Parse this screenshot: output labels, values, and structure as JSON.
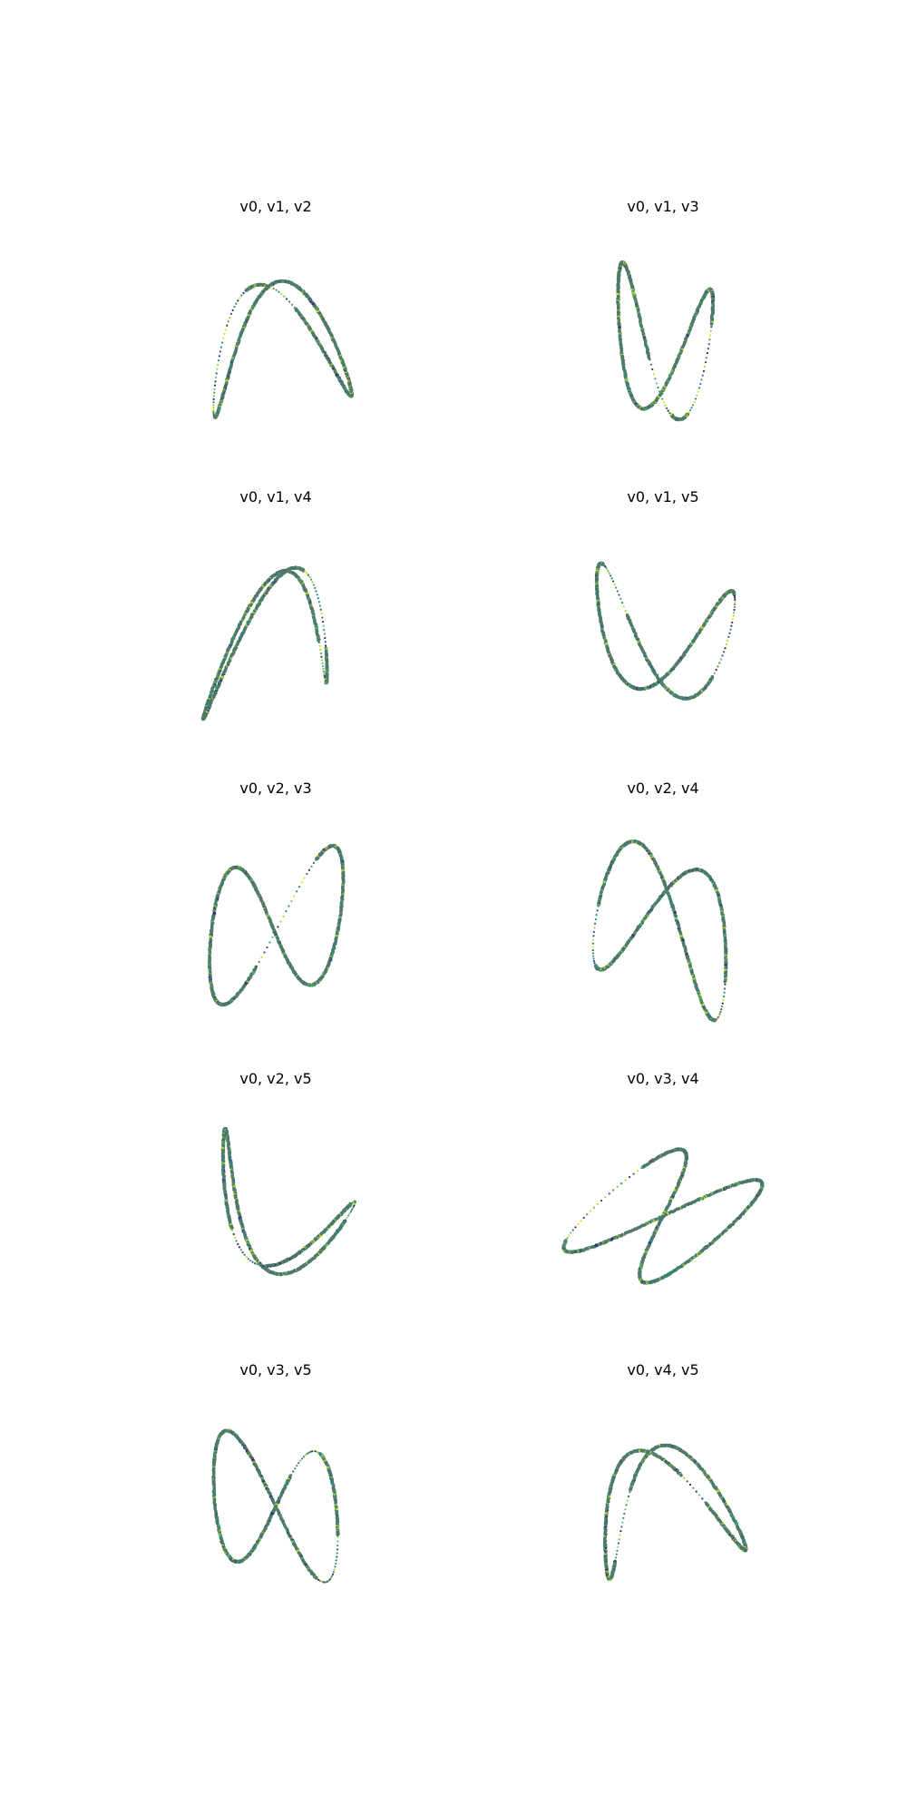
{
  "chart_data": [
    {
      "type": "scatter",
      "title": "v0, v1, v2",
      "curve": {
        "a": [
          0.95,
          0.1
        ],
        "b": [
          -0.15,
          0.85
        ],
        "shift": [
          0.35,
          -0.55
        ]
      },
      "gaps": [
        [
          4.2,
          5.6
        ],
        [
          5.9,
          6.6
        ]
      ]
    },
    {
      "type": "scatter",
      "title": "v0, v1, v3",
      "curve": {
        "a": [
          -0.65,
          0.05
        ],
        "b": [
          -0.2,
          -0.95
        ],
        "shift": [
          0.55,
          0.3
        ]
      },
      "gaps": [
        [
          4.3,
          5.1
        ],
        [
          5.5,
          6.0
        ]
      ]
    },
    {
      "type": "scatter",
      "title": "v0, v1, v4",
      "curve": {
        "a": [
          0.85,
          0.15
        ],
        "b": [
          -0.25,
          -0.9
        ],
        "shift": [
          -0.6,
          0.2
        ]
      },
      "gaps": [
        [
          0.9,
          1.7
        ],
        [
          2.3,
          2.9
        ]
      ]
    },
    {
      "type": "scatter",
      "title": "v0, v1, v5",
      "curve": {
        "a": [
          0.95,
          0.05
        ],
        "b": [
          0.2,
          -0.8
        ],
        "shift": [
          0.1,
          -0.7
        ]
      },
      "gaps": [
        [
          1.3,
          2.2
        ],
        [
          3.6,
          4.2
        ]
      ]
    },
    {
      "type": "scatter",
      "title": "v0, v2, v3",
      "curve": {
        "a": [
          -0.9,
          0.1
        ],
        "b": [
          0.2,
          -0.95
        ],
        "shift": [
          0.3,
          0.5
        ]
      },
      "gaps": [
        [
          2.6,
          3.4
        ]
      ]
    },
    {
      "type": "scatter",
      "title": "v0, v2, v4",
      "curve": {
        "a": [
          0.9,
          0.1
        ],
        "b": [
          0.4,
          -0.95
        ],
        "shift": [
          -0.4,
          -0.25
        ]
      },
      "gaps": [
        [
          1.9,
          2.4
        ],
        [
          4.9,
          5.5
        ]
      ]
    },
    {
      "type": "scatter",
      "title": "v0, v2, v5",
      "curve": {
        "a": [
          0.9,
          0.2
        ],
        "b": [
          0.5,
          -0.7
        ],
        "shift": [
          0.6,
          -0.6
        ]
      },
      "gaps": [
        [
          0.6,
          1.3
        ],
        [
          2.5,
          3.1
        ]
      ]
    },
    {
      "type": "scatter",
      "title": "v0, v3, v4",
      "curve": {
        "a": [
          0.75,
          -0.8
        ],
        "b": [
          0.3,
          0.7
        ],
        "shift": [
          0.4,
          0.8
        ]
      },
      "gaps": [
        [
          3.8,
          4.6
        ]
      ]
    },
    {
      "type": "scatter",
      "title": "v0, v3, v5",
      "curve": {
        "a": [
          -0.85,
          0.05
        ],
        "b": [
          -0.2,
          0.9
        ],
        "shift": [
          0.2,
          0.4
        ]
      },
      "gaps": [
        [
          3.6,
          4.4
        ],
        [
          5.2,
          5.8
        ]
      ]
    },
    {
      "type": "scatter",
      "title": "v0, v4, v5",
      "curve": {
        "a": [
          0.95,
          0.2
        ],
        "b": [
          -0.2,
          0.8
        ],
        "shift": [
          0.65,
          0.1
        ]
      },
      "gaps": [
        [
          2.9,
          3.5
        ],
        [
          6.0,
          6.28
        ]
      ]
    }
  ],
  "colors": {
    "main": "#4f7a6a",
    "palette": [
      "#2c2d6b",
      "#3b528b",
      "#21908c",
      "#5ec962",
      "#a0da39",
      "#d5e21a",
      "#3a7e7a",
      "#6a8f5a"
    ]
  }
}
